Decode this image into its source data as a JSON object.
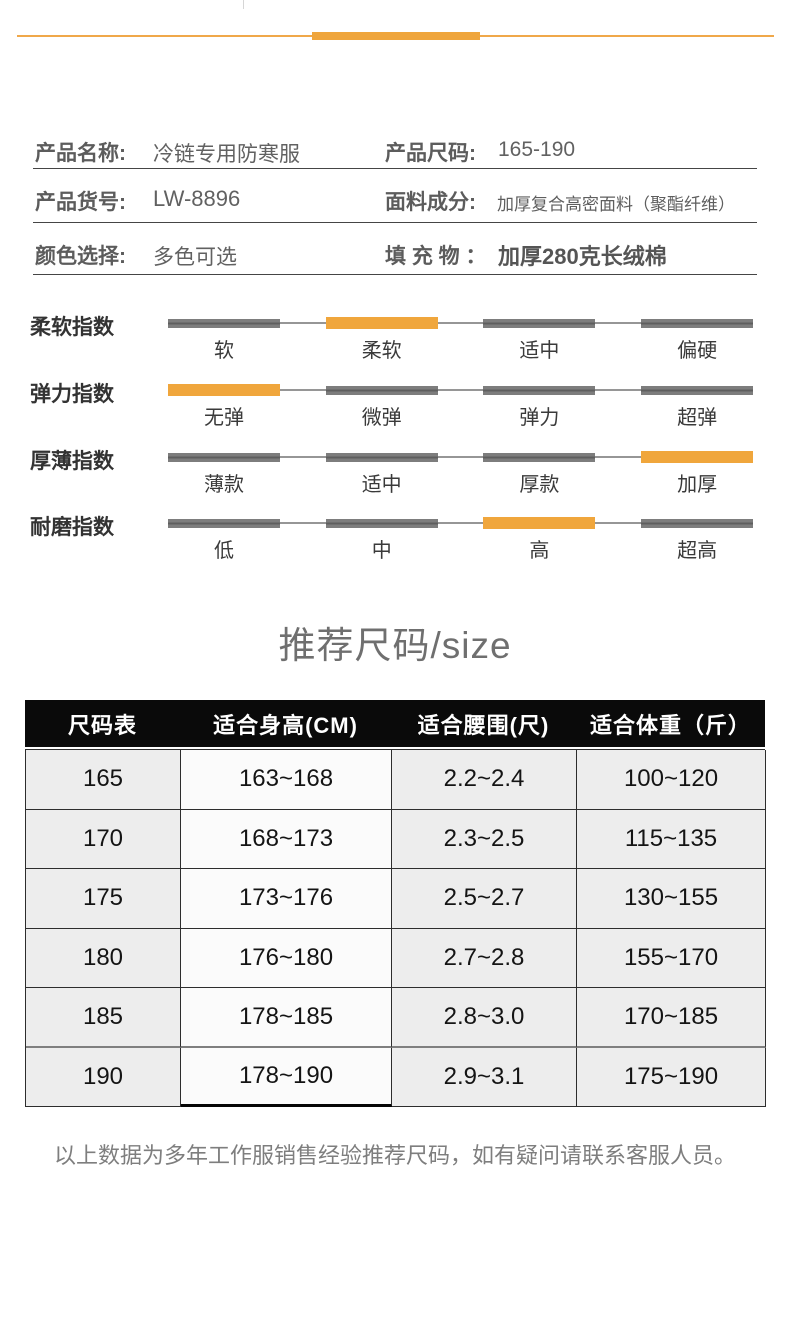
{
  "top": {
    "accent_color": "#F0A63C"
  },
  "product_info": {
    "rows": [
      {
        "left_label": "产品名称:",
        "left_value": "冷链专用防寒服",
        "right_label": "产品尺码:",
        "right_value": "165-190"
      },
      {
        "left_label": "产品货号:",
        "left_value": "LW-8896",
        "right_label": "面料成分:",
        "right_value": "加厚复合高密面料（聚酯纤维）"
      },
      {
        "left_label": "颜色选择:",
        "left_value": "多色可选",
        "right_label": "填 充 物 ：",
        "right_value": "加厚280克长绒棉"
      }
    ]
  },
  "indices": {
    "highlight_color": "#F0A63C",
    "rows": [
      {
        "label": "柔软指数",
        "options": [
          "软",
          "柔软",
          "适中",
          "偏硬"
        ],
        "selected": 1
      },
      {
        "label": "弹力指数",
        "options": [
          "无弹",
          "微弹",
          "弹力",
          "超弹"
        ],
        "selected": 0
      },
      {
        "label": "厚薄指数",
        "options": [
          "薄款",
          "适中",
          "厚款",
          "加厚"
        ],
        "selected": 3
      },
      {
        "label": "耐磨指数",
        "options": [
          "低",
          "中",
          "高",
          "超高"
        ],
        "selected": 2
      }
    ]
  },
  "size_section": {
    "title": "推荐尺码/size",
    "table": {
      "headers": [
        "尺码表",
        "适合身高(CM)",
        "适合腰围(尺)",
        "适合体重（斤）"
      ],
      "rows": [
        [
          "165",
          "163~168",
          "2.2~2.4",
          "100~120"
        ],
        [
          "170",
          "168~173",
          "2.3~2.5",
          "115~135"
        ],
        [
          "175",
          "173~176",
          "2.5~2.7",
          "130~155"
        ],
        [
          "180",
          "176~180",
          "2.7~2.8",
          "155~170"
        ],
        [
          "185",
          "178~185",
          "2.8~3.0",
          "170~185"
        ],
        [
          "190",
          "178~190",
          "2.9~3.1",
          "175~190"
        ]
      ]
    },
    "note": "以上数据为多年工作服销售经验推荐尺码，如有疑问请联系客服人员。"
  }
}
